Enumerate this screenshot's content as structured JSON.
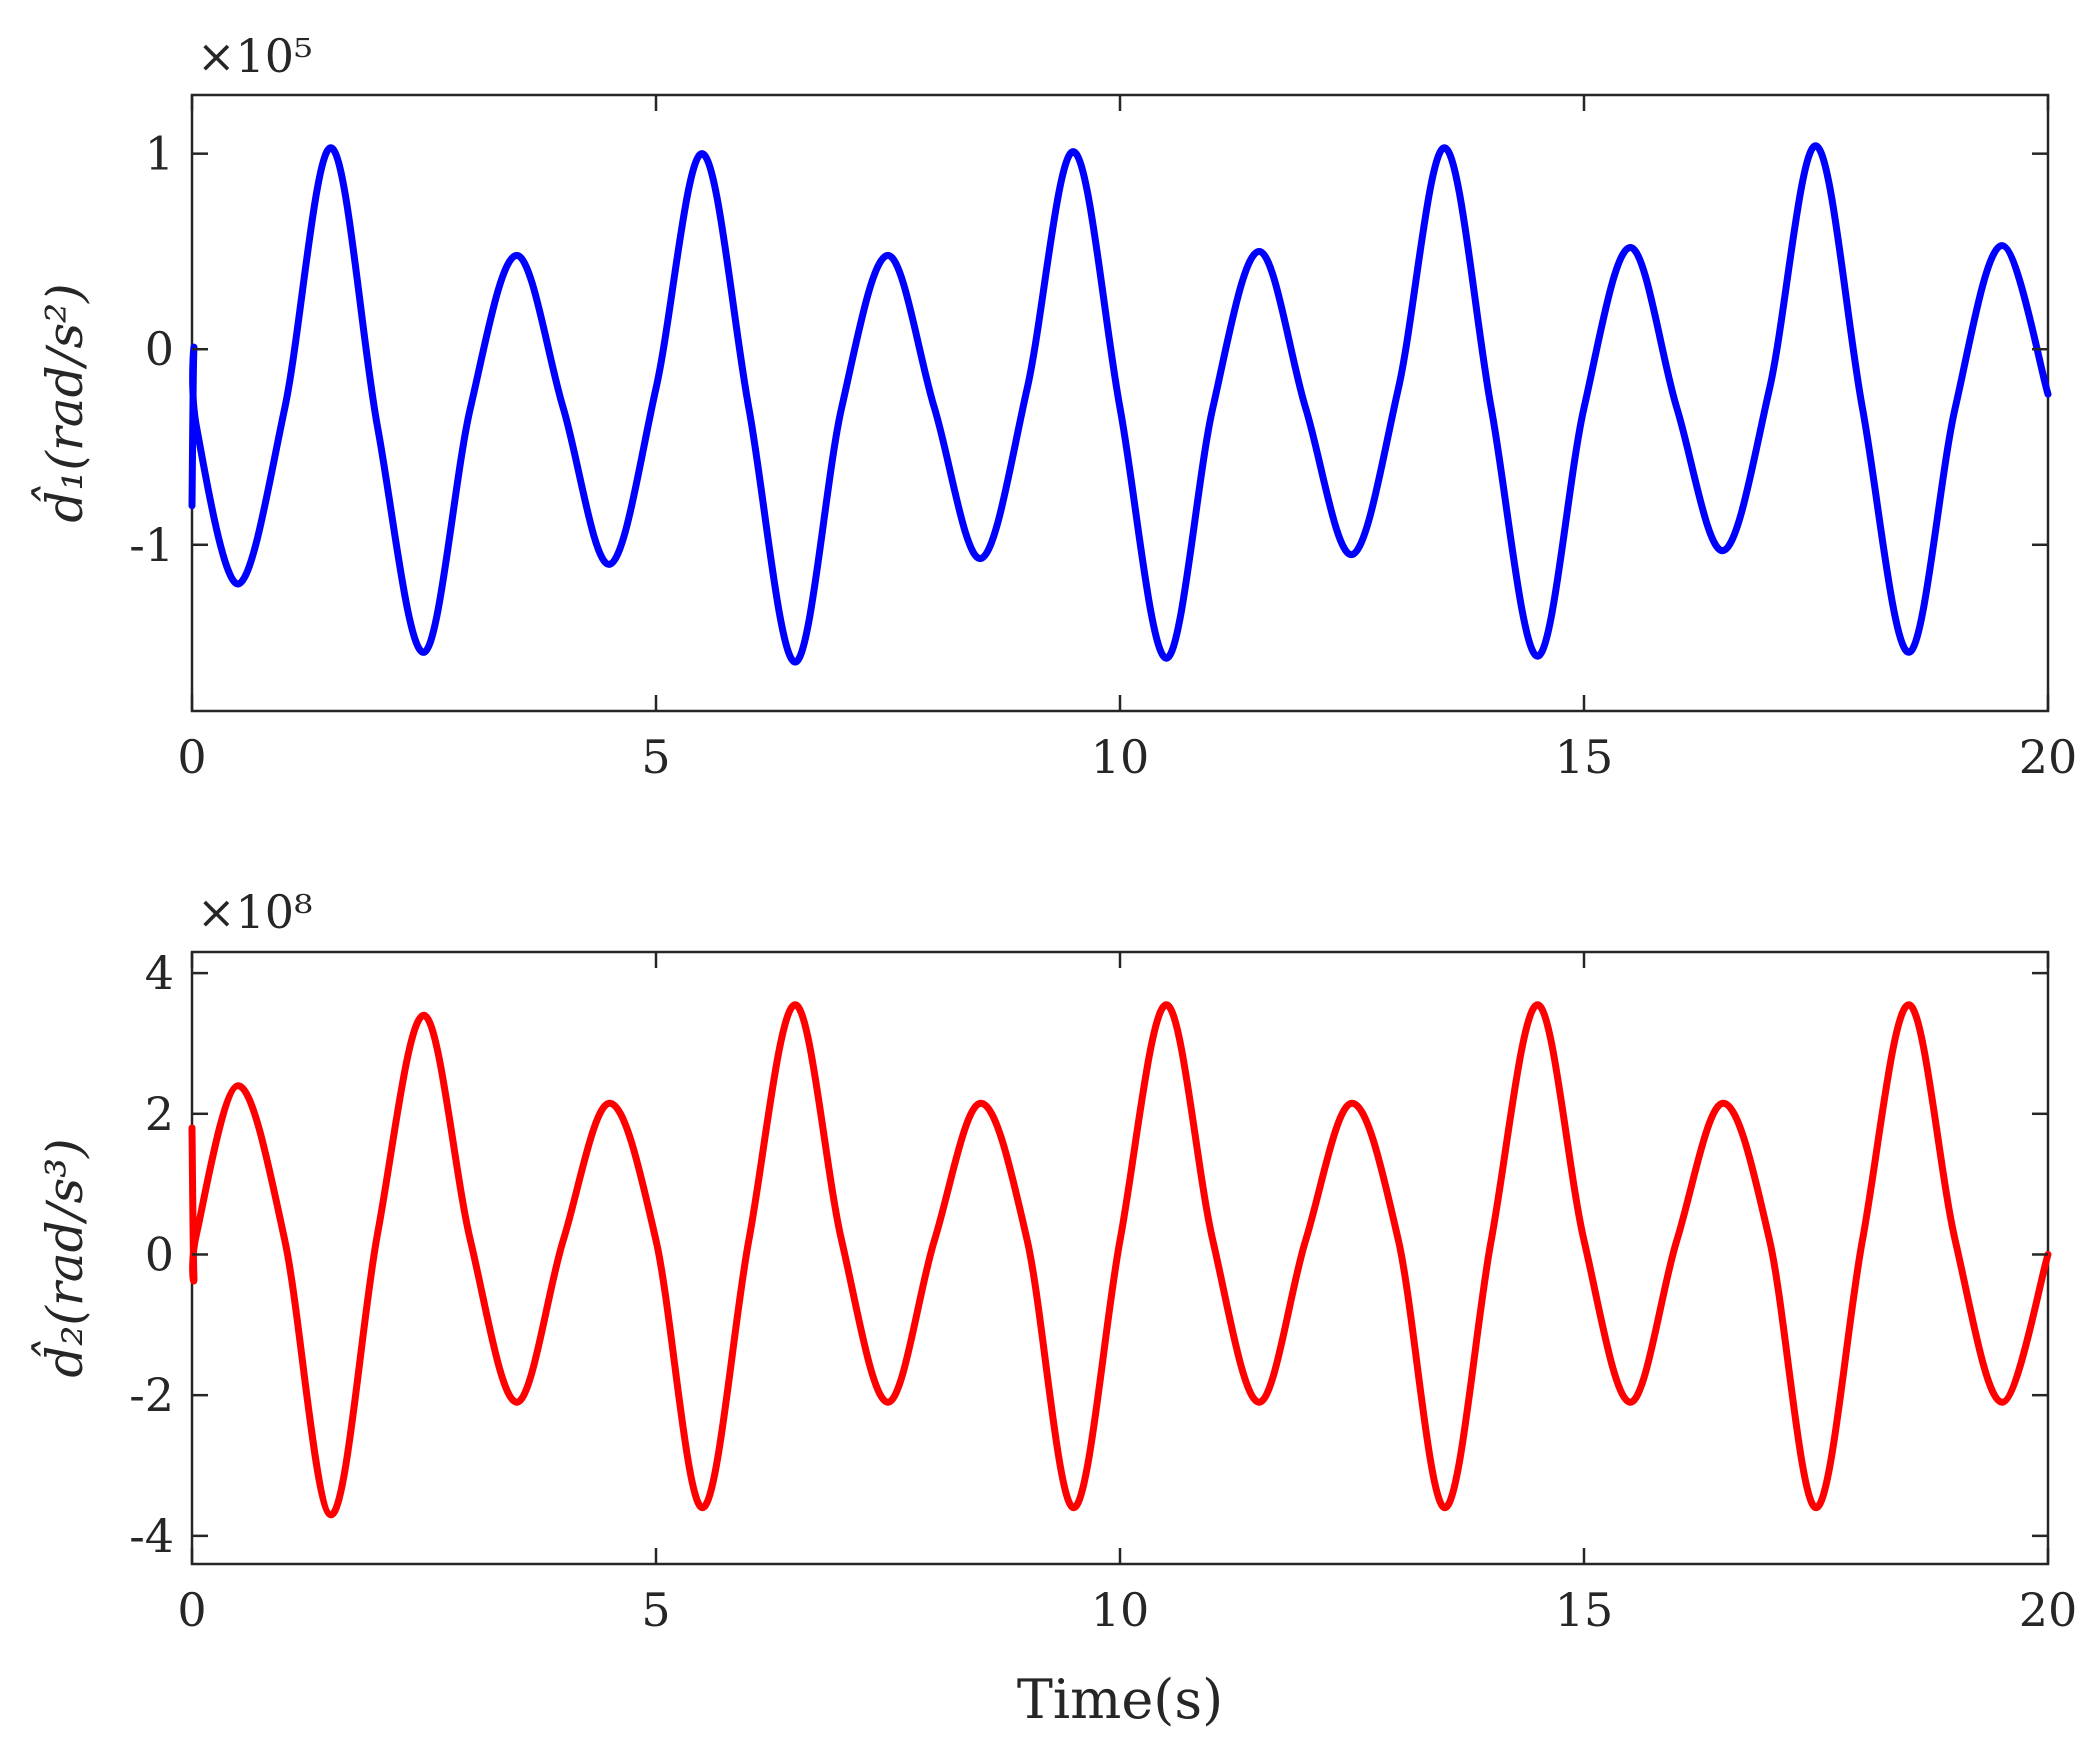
{
  "chart_data": [
    {
      "type": "line",
      "ylabel": "d̂₁(rad/s²)",
      "exponent_label": "×10⁵",
      "xlim": [
        0,
        20
      ],
      "ylim": [
        -1.85,
        1.3
      ],
      "x_ticks": [
        "0",
        "5",
        "10",
        "15",
        "20"
      ],
      "y_ticks": [
        {
          "value": 1,
          "label": "1"
        },
        {
          "value": 0,
          "label": "0"
        },
        {
          "value": -1,
          "label": "-1"
        }
      ],
      "grid": false,
      "series": [
        {
          "color": "#0000ff",
          "x": [
            0,
            0.02,
            0.05,
            0.5,
            1.0,
            1.5,
            2.0,
            2.5,
            3.0,
            3.5,
            4.0,
            4.5,
            5.0,
            5.5,
            6.0,
            6.5,
            7.0,
            7.5,
            8.0,
            8.5,
            9.0,
            9.5,
            10.0,
            10.5,
            11.0,
            11.5,
            12.0,
            12.5,
            13.0,
            13.5,
            14.0,
            14.5,
            15.0,
            15.5,
            16.0,
            16.5,
            17.0,
            17.5,
            18.0,
            18.5,
            19.0,
            19.5,
            20.0
          ],
          "y": [
            -0.8,
            0.0,
            -0.4,
            -1.2,
            -0.3,
            1.03,
            -0.4,
            -1.55,
            -0.3,
            0.48,
            -0.3,
            -1.1,
            -0.2,
            1.0,
            -0.3,
            -1.6,
            -0.3,
            0.48,
            -0.3,
            -1.07,
            -0.2,
            1.01,
            -0.3,
            -1.58,
            -0.3,
            0.5,
            -0.3,
            -1.05,
            -0.2,
            1.03,
            -0.3,
            -1.57,
            -0.3,
            0.52,
            -0.3,
            -1.03,
            -0.2,
            1.04,
            -0.3,
            -1.55,
            -0.3,
            0.53,
            -0.23
          ]
        }
      ]
    },
    {
      "type": "line",
      "ylabel": "d̂₂(rad/s³)",
      "xlabel": "Time(s)",
      "exponent_label": "×10⁸",
      "xlim": [
        0,
        20
      ],
      "ylim": [
        -4.4,
        4.3
      ],
      "x_ticks": [
        "0",
        "5",
        "10",
        "15",
        "20"
      ],
      "y_ticks": [
        {
          "value": 4,
          "label": "4"
        },
        {
          "value": 2,
          "label": "2"
        },
        {
          "value": 0,
          "label": "0"
        },
        {
          "value": -2,
          "label": "-2"
        },
        {
          "value": -4,
          "label": "-4"
        }
      ],
      "grid": false,
      "series": [
        {
          "color": "#ff0000",
          "x": [
            0,
            0.02,
            0.05,
            0.5,
            1.0,
            1.5,
            2.0,
            2.5,
            3.0,
            3.5,
            4.0,
            4.5,
            5.0,
            5.5,
            6.0,
            6.5,
            7.0,
            7.5,
            8.0,
            8.5,
            9.0,
            9.5,
            10.0,
            10.5,
            11.0,
            11.5,
            12.0,
            12.5,
            13.0,
            13.5,
            14.0,
            14.5,
            15.0,
            15.5,
            16.0,
            16.5,
            17.0,
            17.5,
            18.0,
            18.5,
            19.0,
            19.5,
            20.0
          ],
          "y": [
            1.8,
            -0.3,
            0.3,
            2.4,
            0.2,
            -3.7,
            0.3,
            3.4,
            0.2,
            -2.1,
            0.2,
            2.15,
            0.2,
            -3.6,
            0.2,
            3.55,
            0.2,
            -2.1,
            0.2,
            2.15,
            0.2,
            -3.6,
            0.2,
            3.55,
            0.2,
            -2.1,
            0.2,
            2.15,
            0.2,
            -3.6,
            0.2,
            3.55,
            0.2,
            -2.1,
            0.2,
            2.15,
            0.2,
            -3.6,
            0.2,
            3.55,
            0.2,
            -2.1,
            0.0
          ]
        }
      ]
    }
  ]
}
